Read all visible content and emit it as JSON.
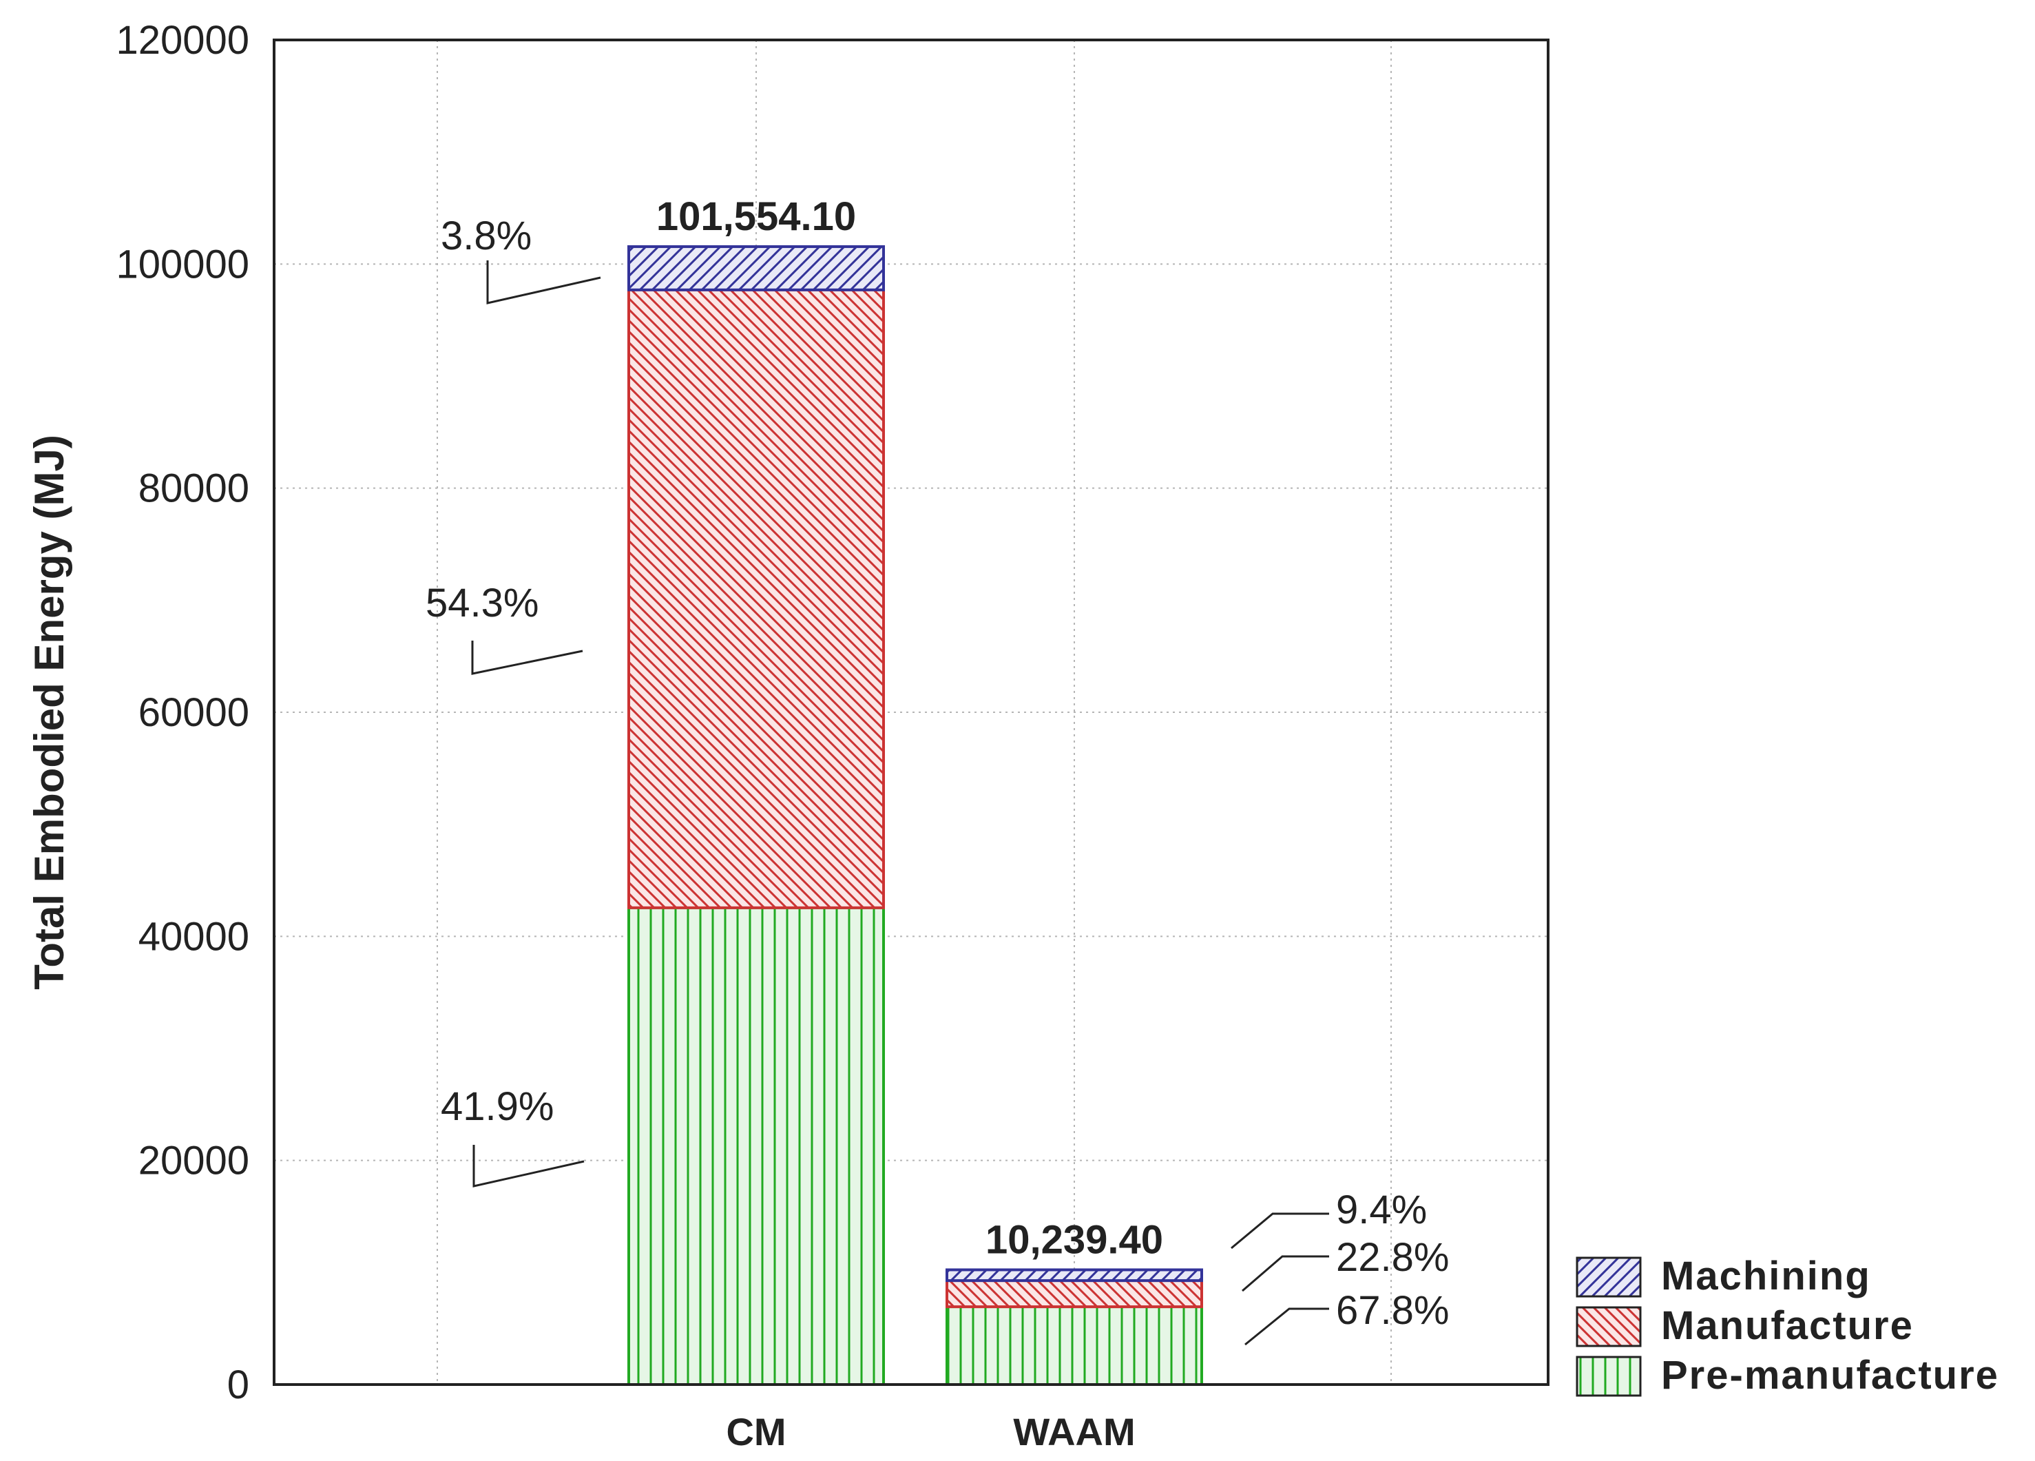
{
  "chart_data": {
    "type": "bar",
    "stacked": true,
    "categories": [
      "CM",
      "WAAM"
    ],
    "series": [
      {
        "name": "Pre-manufacture",
        "values": [
          42551.2,
          6942.3
        ],
        "percent_labels": [
          "41.9%",
          "67.8%"
        ],
        "color": "#22aa22",
        "fill": "#e6f6e6"
      },
      {
        "name": "Manufacture",
        "values": [
          55143.9,
          2334.6
        ],
        "percent_labels": [
          "54.3%",
          "22.8%"
        ],
        "color": "#cc3333",
        "fill": "#fbe6e6"
      },
      {
        "name": "Machining",
        "values": [
          3859.0,
          962.5
        ],
        "percent_labels": [
          "3.8%",
          "9.4%"
        ],
        "color": "#333399",
        "fill": "#e9e9f7"
      }
    ],
    "totals": [
      101554.1,
      10239.4
    ],
    "total_labels": [
      "101,554.10",
      "10,239.40"
    ],
    "ylabel": "Total Embodied Energy (MJ)",
    "xlabel": "",
    "ylim": [
      0,
      120000
    ],
    "yticks": [
      0,
      20000,
      40000,
      60000,
      80000,
      100000,
      120000
    ],
    "ytick_labels": [
      "0",
      "20000",
      "40000",
      "60000",
      "80000",
      "100000",
      "120000"
    ],
    "grid": true,
    "legend_position": "bottom-right"
  }
}
